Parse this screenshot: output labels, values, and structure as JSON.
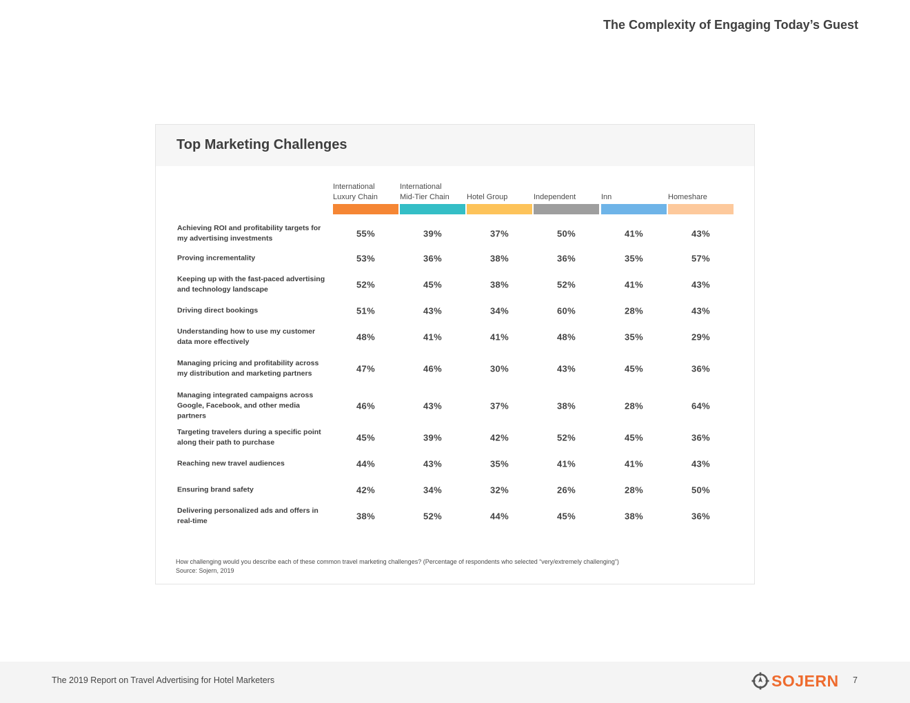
{
  "header": {
    "title": "The Complexity of Engaging Today’s Guest"
  },
  "card": {
    "title": "Top Marketing Challenges",
    "columns": [
      {
        "line1": "International",
        "line2": "Luxury Chain",
        "color": "#F58634"
      },
      {
        "line1": "International",
        "line2": "Mid-Tier Chain",
        "color": "#34BEC6"
      },
      {
        "line1": "",
        "line2": "Hotel Group",
        "color": "#FDC35A"
      },
      {
        "line1": "",
        "line2": "Independent",
        "color": "#9E9E9E"
      },
      {
        "line1": "",
        "line2": "Inn",
        "color": "#6EB4E8"
      },
      {
        "line1": "",
        "line2": "Homeshare",
        "color": "#FDC99C"
      }
    ],
    "rows": [
      {
        "label": "Achieving ROI and profitability targets for my advertising investments",
        "values": [
          "55%",
          "39%",
          "37%",
          "50%",
          "41%",
          "43%"
        ]
      },
      {
        "label": "Proving incrementality",
        "values": [
          "53%",
          "36%",
          "38%",
          "36%",
          "35%",
          "57%"
        ]
      },
      {
        "label": "Keeping up with the fast-paced advertising and technology landscape",
        "values": [
          "52%",
          "45%",
          "38%",
          "52%",
          "41%",
          "43%"
        ]
      },
      {
        "label": "Driving direct bookings",
        "values": [
          "51%",
          "43%",
          "34%",
          "60%",
          "28%",
          "43%"
        ]
      },
      {
        "label": "Understanding how to use my customer data more effectively",
        "values": [
          "48%",
          "41%",
          "41%",
          "48%",
          "35%",
          "29%"
        ]
      },
      {
        "label": "Managing pricing and profitability across my distribution and marketing partners",
        "values": [
          "47%",
          "46%",
          "30%",
          "43%",
          "45%",
          "36%"
        ]
      },
      {
        "label": "Managing integrated campaigns across Google, Facebook, and other media partners",
        "values": [
          "46%",
          "43%",
          "37%",
          "38%",
          "28%",
          "64%"
        ]
      },
      {
        "label": "Targeting travelers during a specific point along their path to purchase",
        "values": [
          "45%",
          "39%",
          "42%",
          "52%",
          "45%",
          "36%"
        ]
      },
      {
        "label": "Reaching new travel audiences",
        "values": [
          "44%",
          "43%",
          "35%",
          "41%",
          "41%",
          "43%"
        ]
      },
      {
        "label": "Ensuring brand safety",
        "values": [
          "42%",
          "34%",
          "32%",
          "26%",
          "28%",
          "50%"
        ]
      },
      {
        "label": "Delivering personalized ads and offers in real-time",
        "values": [
          "38%",
          "52%",
          "44%",
          "45%",
          "38%",
          "36%"
        ]
      }
    ],
    "footnote": {
      "question": "How challenging would you describe each of these common travel marketing challenges? (Percentage of respondents who selected “very/extremely challenging”)",
      "source": "Source: Sojern, 2019"
    }
  },
  "footer": {
    "report_title": "The 2019 Report on Travel Advertising for Hotel Marketers",
    "logo_text": "SOJERN",
    "logo_icon": "compass-target-icon",
    "logo_color": "#EE6B2E",
    "page_number": "7"
  }
}
